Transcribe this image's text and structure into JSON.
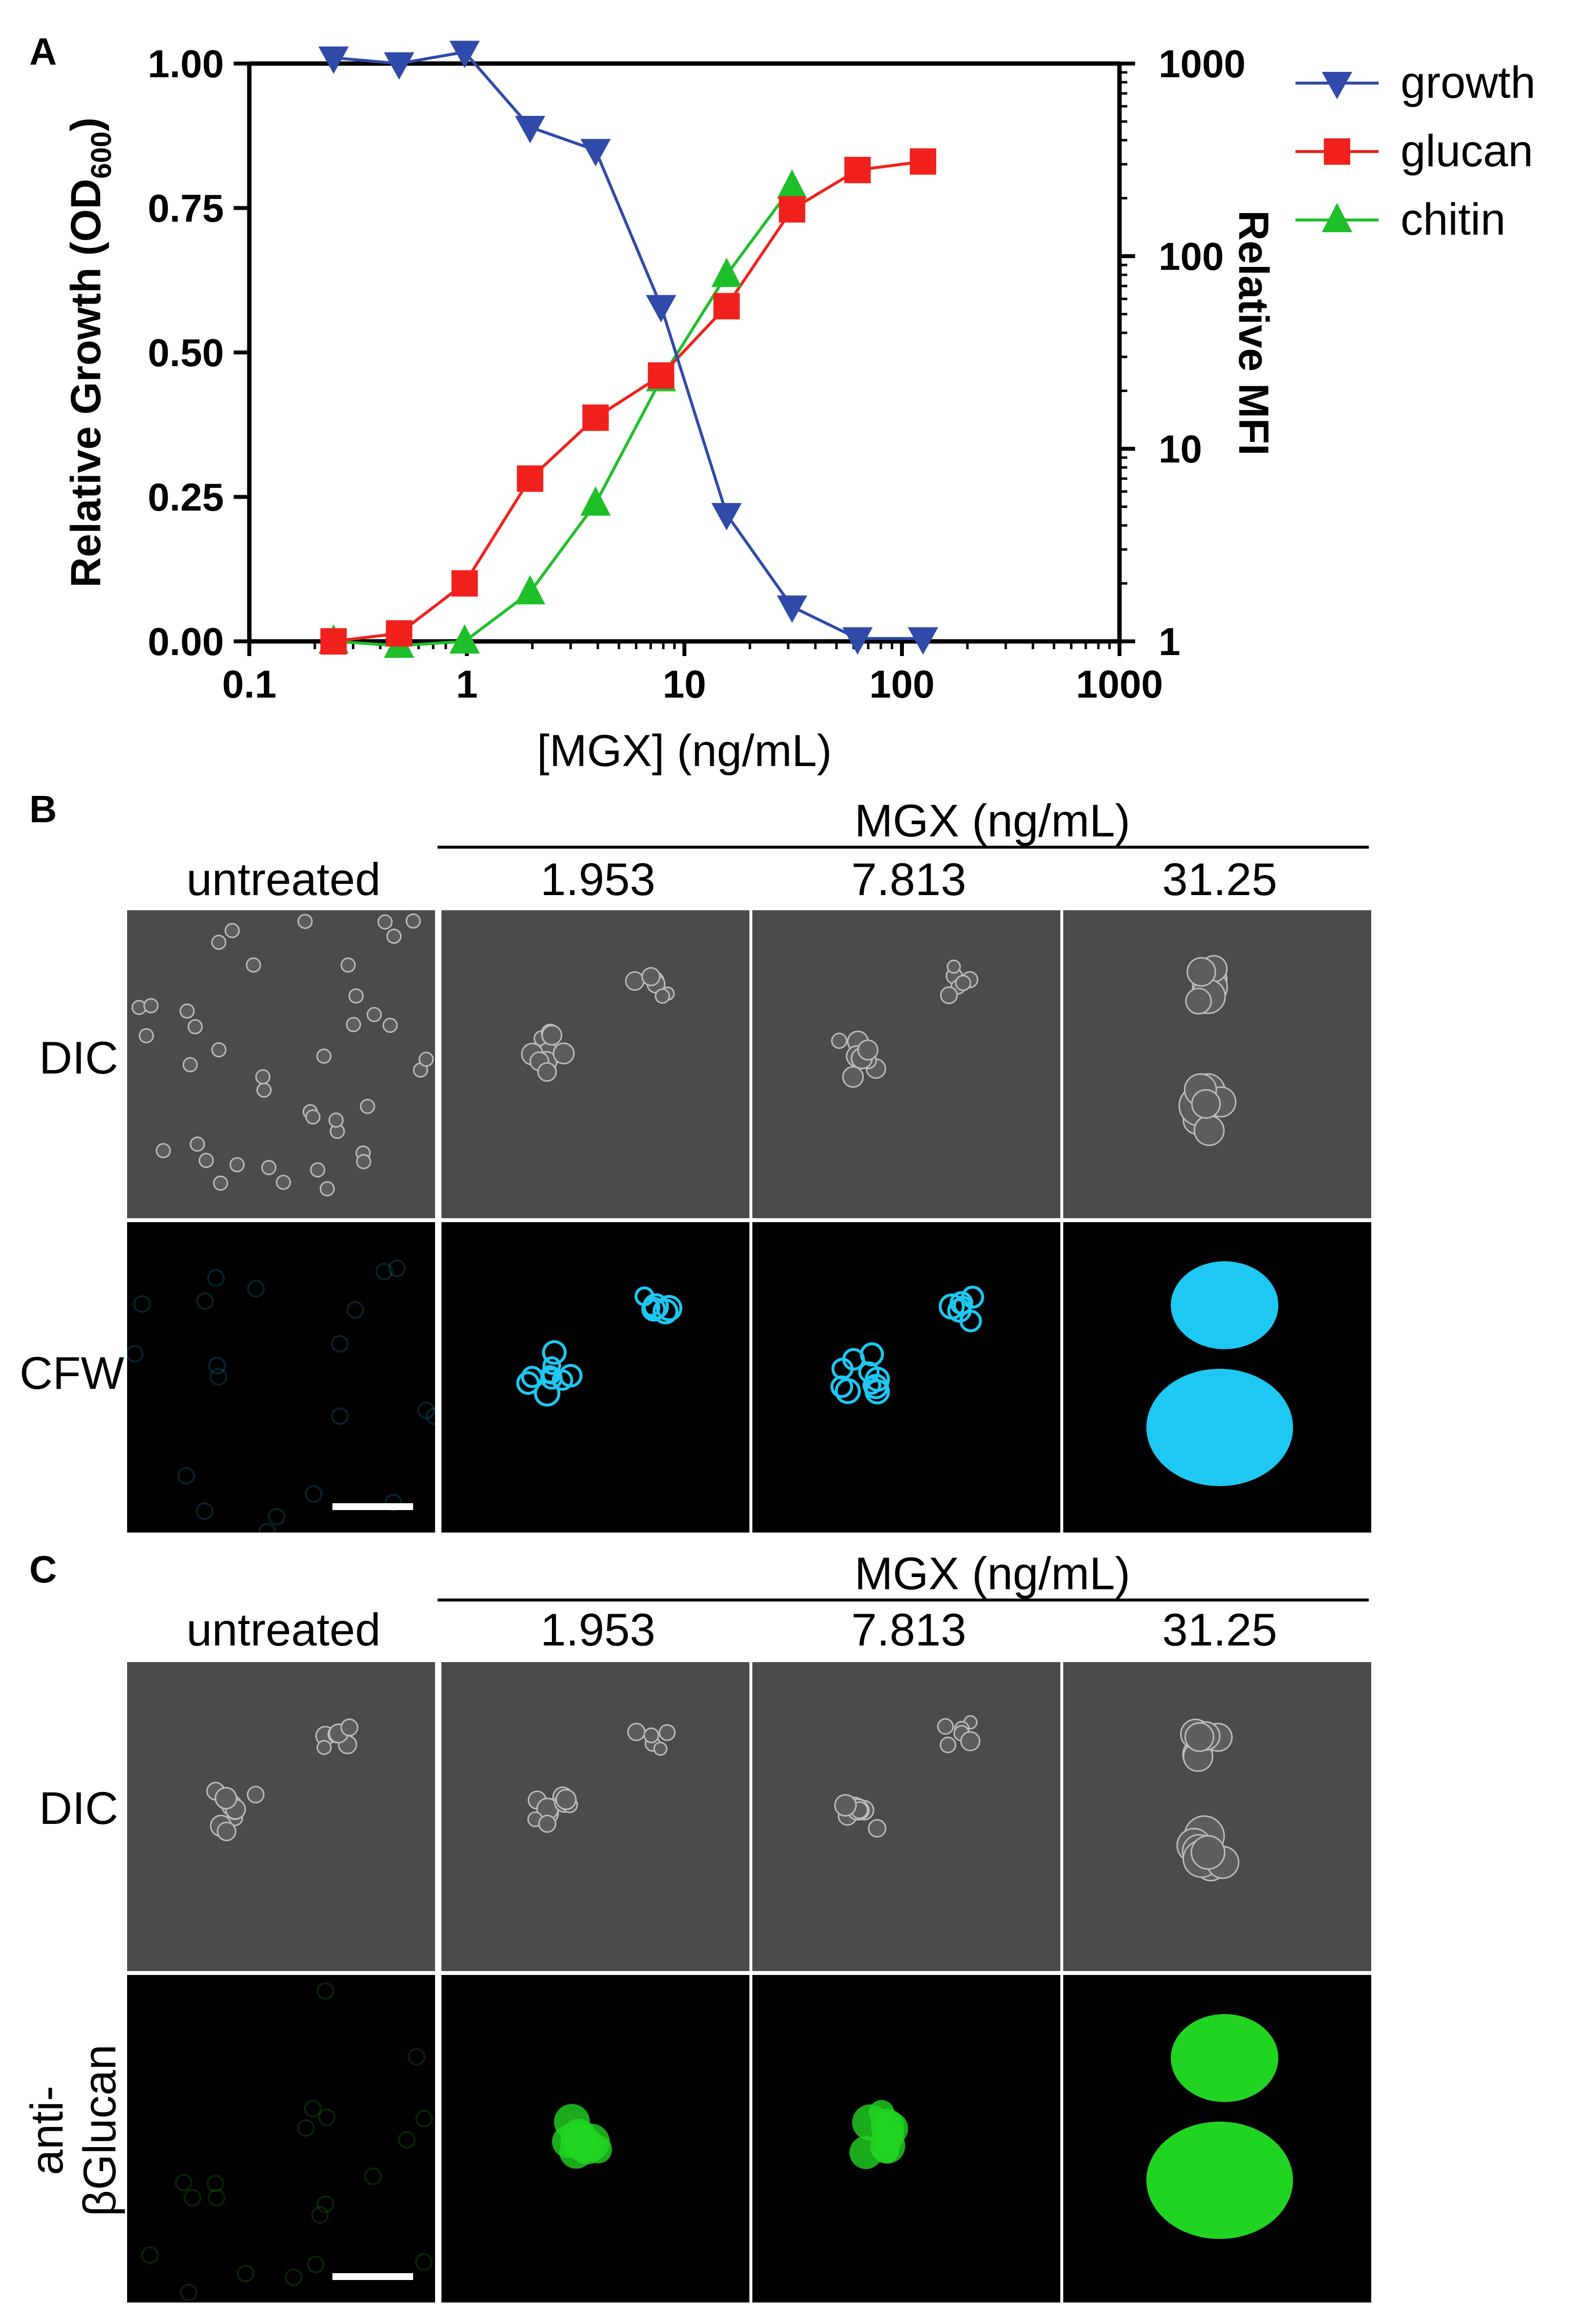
{
  "panels": {
    "a": {
      "letter": "A"
    },
    "b": {
      "letter": "B"
    },
    "c": {
      "letter": "C"
    }
  },
  "micro": {
    "header": "MGX (ng/mL)",
    "columns": [
      "untreated",
      "1.953",
      "7.813",
      "31.25"
    ],
    "b_rows": [
      "DIC",
      "CFW"
    ],
    "c_rows": [
      "DIC",
      "anti-βGlucan"
    ]
  },
  "colors": {
    "growth": "#2f4aa8",
    "glucan": "#f0201c",
    "chitin": "#1fbf2a",
    "cfw_stain": "#1ec8f2",
    "glucan_stain": "#22d422",
    "dic_background": "#4b4b4b"
  },
  "chart_data": {
    "type": "line",
    "xlabel": "[MGX] (ng/mL)",
    "ylabel_left": "Relative Growth (OD",
    "ylabel_left_sub": "600",
    "ylabel_left_end": ")",
    "ylabel_right": "Relative MFI",
    "x_scale": "log",
    "xlim": [
      0.1,
      1000
    ],
    "x_ticks": [
      "0.1",
      "1",
      "10",
      "100",
      "1000"
    ],
    "x_tick_values": [
      0.1,
      1,
      10,
      100,
      1000
    ],
    "ylim_left": [
      0,
      1.0
    ],
    "y_left_ticks": [
      "0.00",
      "0.25",
      "0.50",
      "0.75",
      "1.00"
    ],
    "y_left_tick_values": [
      0,
      0.25,
      0.5,
      0.75,
      1.0
    ],
    "y_right_scale": "log",
    "ylim_right": [
      1,
      1000
    ],
    "y_right_ticks": [
      "1",
      "10",
      "100",
      "1000"
    ],
    "y_right_tick_values": [
      1,
      10,
      100,
      1000
    ],
    "legend_position": "top-right",
    "grid": false,
    "series": [
      {
        "name": "growth",
        "axis": "left",
        "marker": "triangle-down",
        "x": [
          0.244,
          0.488,
          0.977,
          1.953,
          3.906,
          7.813,
          15.63,
          31.25,
          62.5,
          125
        ],
        "y": [
          1.01,
          1.0,
          1.02,
          0.89,
          0.85,
          0.58,
          0.22,
          0.06,
          0.005,
          0.005
        ]
      },
      {
        "name": "glucan",
        "axis": "right",
        "marker": "square",
        "x": [
          0.244,
          0.488,
          0.977,
          1.953,
          3.906,
          7.813,
          15.63,
          31.25,
          62.5,
          125
        ],
        "y": [
          1.0,
          1.1,
          2.0,
          7.0,
          14.5,
          24.0,
          55.0,
          175.0,
          280.0,
          310.0
        ]
      },
      {
        "name": "chitin",
        "axis": "right",
        "marker": "triangle-up",
        "x": [
          0.244,
          0.488,
          0.977,
          1.953,
          3.906,
          7.813,
          15.63,
          31.25
        ],
        "y": [
          1.0,
          0.95,
          1.0,
          1.8,
          5.2,
          23.0,
          80.0,
          230.0
        ]
      }
    ]
  }
}
